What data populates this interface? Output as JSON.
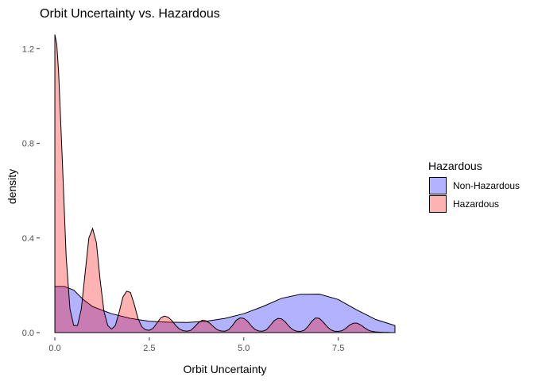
{
  "chart_data": {
    "type": "area",
    "title": "Orbit Uncertainty vs. Hazardous",
    "xlabel": "Orbit Uncertainty",
    "ylabel": "density",
    "xlim": [
      -0.4,
      9.0
    ],
    "ylim": [
      -0.02,
      1.265
    ],
    "x_ticks": [
      0,
      2.5,
      5,
      7.5
    ],
    "x_tick_labels": [
      "0.0",
      "2.5",
      "5.0",
      "7.5"
    ],
    "y_ticks": [
      0,
      0.4,
      0.8,
      1.2
    ],
    "y_tick_labels": [
      "0.0",
      "0.4",
      "0.8",
      "1.2"
    ],
    "grid": false,
    "legend": {
      "title": "Hazardous",
      "placement": "right",
      "entries": [
        {
          "label": "Non-Hazardous",
          "color": "#0000FF"
        },
        {
          "label": "Hazardous",
          "color": "#FF0000"
        }
      ]
    },
    "series": [
      {
        "name": "Non-Hazardous",
        "color": "#0000FF",
        "opacity": 0.3,
        "x": [
          0,
          0.25,
          0.5,
          0.75,
          1.0,
          1.5,
          2.0,
          2.5,
          3.0,
          3.5,
          4.0,
          4.5,
          5.0,
          5.5,
          6.0,
          6.5,
          7.0,
          7.5,
          8.0,
          8.5,
          9.0
        ],
        "y": [
          0.195,
          0.195,
          0.18,
          0.14,
          0.11,
          0.08,
          0.06,
          0.048,
          0.044,
          0.043,
          0.048,
          0.06,
          0.08,
          0.11,
          0.145,
          0.162,
          0.163,
          0.14,
          0.095,
          0.055,
          0.03
        ]
      },
      {
        "name": "Hazardous",
        "color": "#FF0000",
        "opacity": 0.3,
        "x": [
          0,
          0.05,
          0.1,
          0.2,
          0.3,
          0.4,
          0.5,
          0.6,
          0.7,
          0.8,
          0.9,
          1.0,
          1.1,
          1.2,
          1.3,
          1.4,
          1.5,
          1.6,
          1.7,
          1.8,
          1.9,
          2.0,
          2.1,
          2.2,
          2.3,
          2.4,
          2.5,
          2.6,
          2.7,
          2.8,
          2.9,
          3.0,
          3.1,
          3.2,
          3.3,
          3.4,
          3.5,
          3.6,
          3.7,
          3.8,
          3.9,
          4.0,
          4.1,
          4.2,
          4.3,
          4.4,
          4.5,
          4.6,
          4.7,
          4.8,
          4.9,
          5.0,
          5.1,
          5.2,
          5.3,
          5.4,
          5.5,
          5.6,
          5.7,
          5.8,
          5.9,
          6.0,
          6.1,
          6.2,
          6.3,
          6.4,
          6.5,
          6.6,
          6.7,
          6.8,
          6.9,
          7.0,
          7.1,
          7.2,
          7.3,
          7.4,
          7.5,
          7.6,
          7.7,
          7.8,
          7.9,
          8.0,
          8.1,
          8.2,
          8.3,
          8.4,
          8.5,
          8.6,
          8.7,
          8.8,
          8.9,
          9.0
        ],
        "y": [
          1.26,
          1.22,
          1.1,
          0.72,
          0.32,
          0.1,
          0.03,
          0.03,
          0.1,
          0.25,
          0.4,
          0.44,
          0.38,
          0.22,
          0.09,
          0.03,
          0.015,
          0.03,
          0.085,
          0.15,
          0.175,
          0.17,
          0.12,
          0.06,
          0.025,
          0.012,
          0.01,
          0.018,
          0.04,
          0.062,
          0.07,
          0.065,
          0.05,
          0.03,
          0.015,
          0.008,
          0.006,
          0.01,
          0.025,
          0.042,
          0.052,
          0.05,
          0.04,
          0.025,
          0.012,
          0.007,
          0.006,
          0.012,
          0.03,
          0.052,
          0.062,
          0.06,
          0.048,
          0.028,
          0.013,
          0.007,
          0.006,
          0.012,
          0.03,
          0.05,
          0.06,
          0.058,
          0.045,
          0.026,
          0.012,
          0.006,
          0.005,
          0.01,
          0.026,
          0.048,
          0.062,
          0.06,
          0.045,
          0.026,
          0.012,
          0.006,
          0.005,
          0.008,
          0.018,
          0.032,
          0.04,
          0.04,
          0.032,
          0.02,
          0.01,
          0.005,
          0.003,
          0.002,
          0.001,
          0.001,
          0.0,
          0.0
        ]
      }
    ]
  }
}
